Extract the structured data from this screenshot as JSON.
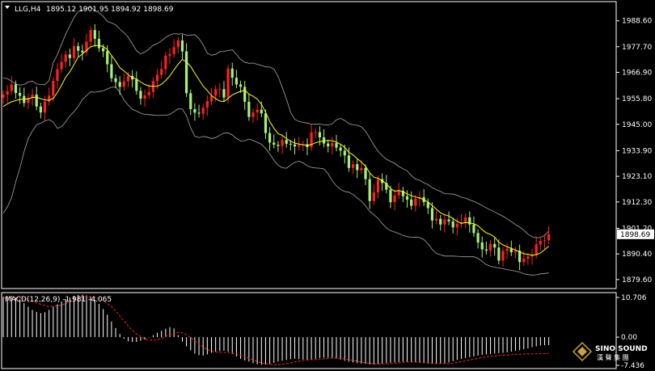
{
  "header": {
    "symbol_label": "LLG,H4",
    "ohlc_label": "1895.12 1901.95 1894.92 1898.69"
  },
  "macd_label": "MACD(12,26,9) -1.981 -4.065",
  "logo": {
    "name": "SINO SOUND",
    "cn": "漢 聲 集 團"
  },
  "colors": {
    "background": "#000000",
    "bull": "#ff2020",
    "bear": "#a6f07a",
    "ma": "#ffff00",
    "bands": "#a8a8a8",
    "macd_hist": "#ffffff",
    "macd_signal": "#ff2020",
    "grid": "#ffffff"
  },
  "chart_data": [
    {
      "type": "candlestick",
      "title": "LLG,H4",
      "ylim": [
        1876.5,
        1996.0
      ],
      "y_ticks": [
        1988.6,
        1977.7,
        1966.9,
        1955.8,
        1945.0,
        1933.9,
        1923.1,
        1912.3,
        1901.2,
        1890.4,
        1879.6
      ],
      "y_tick_labels": [
        "1988.60",
        "1977.70",
        "1966.90",
        "1955.80",
        "1945.00",
        "1933.90",
        "1923.10",
        "1912.30",
        "1901.20",
        "1890.40",
        "1879.60"
      ],
      "current_price": 1898.69,
      "current_price_label": "1898.69",
      "close": [
        1957.5,
        1959.0,
        1961.8,
        1958.2,
        1957.0,
        1954.0,
        1956.2,
        1957.5,
        1952.5,
        1950.0,
        1954.6,
        1957.1,
        1963.3,
        1968.2,
        1971.3,
        1974.4,
        1972.9,
        1977.9,
        1976.0,
        1975.3,
        1979.8,
        1984.7,
        1981.0,
        1977.1,
        1975.8,
        1970.3,
        1964.4,
        1962.8,
        1960.8,
        1963.1,
        1965.4,
        1963.9,
        1959.1,
        1955.8,
        1957.2,
        1958.6,
        1963.2,
        1965.8,
        1968.3,
        1973.9,
        1974.6,
        1977.5,
        1980.3,
        1975.7,
        1958.1,
        1951.4,
        1949.9,
        1949.5,
        1952.0,
        1954.7,
        1957.0,
        1959.8,
        1959.8,
        1956.3,
        1968.5,
        1964.6,
        1961.8,
        1960.8,
        1954.5,
        1948.1,
        1950.0,
        1951.2,
        1949.6,
        1941.3,
        1937.3,
        1936.4,
        1935.9,
        1938.4,
        1936.8,
        1936.5,
        1935.7,
        1936.2,
        1936.6,
        1935.4,
        1941.6,
        1941.7,
        1939.5,
        1936.9,
        1935.7,
        1937.1,
        1935.2,
        1933.9,
        1931.9,
        1926.6,
        1928.2,
        1925.7,
        1926.6,
        1921.9,
        1912.7,
        1916.3,
        1921.9,
        1920.3,
        1917.5,
        1912.2,
        1915.1,
        1917.0,
        1914.7,
        1913.3,
        1910.7,
        1913.7,
        1914.3,
        1912.2,
        1909.7,
        1904.5,
        1905.2,
        1902.8,
        1904.9,
        1904.1,
        1901.6,
        1903.1,
        1903.8,
        1905.8,
        1902.8,
        1899.2,
        1895.2,
        1892.3,
        1891.8,
        1894.6,
        1893.1,
        1887.6,
        1891.7,
        1892.6,
        1891.1,
        1891.8,
        1887.0,
        1888.4,
        1889.3,
        1890.0,
        1894.4,
        1895.9,
        1896.2,
        1898.7
      ],
      "ma": [
        1952.5,
        1953.6,
        1954.5,
        1955.0,
        1955.5,
        1955.6,
        1955.7,
        1956.3,
        1956.4,
        1955.8,
        1955.3,
        1955.1,
        1955.9,
        1958.4,
        1961.4,
        1964.9,
        1967.1,
        1970.2,
        1973.3,
        1974.6,
        1976.2,
        1977.7,
        1978.2,
        1978.2,
        1977.8,
        1976.5,
        1974.0,
        1971.6,
        1968.8,
        1967.5,
        1965.9,
        1964.6,
        1964.1,
        1962.8,
        1961.8,
        1961.1,
        1961.0,
        1961.0,
        1961.9,
        1963.5,
        1965.4,
        1967.9,
        1970.3,
        1972.3,
        1971.3,
        1969.4,
        1966.5,
        1963.8,
        1961.1,
        1959.2,
        1957.1,
        1955.9,
        1954.8,
        1954.6,
        1955.9,
        1957.4,
        1958.2,
        1958.9,
        1959.4,
        1957.7,
        1956.8,
        1955.6,
        1953.4,
        1950.1,
        1946.2,
        1943.3,
        1941.1,
        1940.3,
        1939.0,
        1937.9,
        1937.1,
        1936.7,
        1936.4,
        1936.1,
        1936.5,
        1937.2,
        1937.7,
        1938.0,
        1938.2,
        1938.1,
        1937.5,
        1936.6,
        1935.3,
        1933.2,
        1932.1,
        1930.5,
        1929.1,
        1927.3,
        1924.6,
        1922.7,
        1922.3,
        1921.2,
        1919.9,
        1918.0,
        1916.8,
        1917.1,
        1916.6,
        1915.7,
        1914.9,
        1914.4,
        1914.0,
        1913.2,
        1912.3,
        1910.8,
        1909.3,
        1907.7,
        1906.9,
        1906.4,
        1905.3,
        1904.1,
        1903.3,
        1903.6,
        1903.5,
        1903.1,
        1902.3,
        1900.6,
        1899.3,
        1898.6,
        1897.5,
        1895.3,
        1894.2,
        1893.4,
        1892.7,
        1892.1,
        1891.2,
        1890.5,
        1890.2,
        1889.9,
        1890.1,
        1890.8,
        1892.2,
        1893.7
      ],
      "bollinger_upper": [
        1964.5,
        1964.2,
        1963.2,
        1962.0,
        1961.5,
        1961.8,
        1962.8,
        1963.2,
        1962.0,
        1961.8,
        1961.7,
        1963.4,
        1971.0,
        1974.3,
        1978.7,
        1983.0,
        1986.5,
        1990.0,
        1992.5,
        1993.1,
        1993.9,
        1994.4,
        1992.9,
        1992.0,
        1990.5,
        1988.3,
        1987.7,
        1986.9,
        1985.1,
        1983.6,
        1981.7,
        1978.8,
        1976.0,
        1974.7,
        1975.4,
        1976.8,
        1978.3,
        1979.0,
        1980.2,
        1981.6,
        1982.6,
        1983.2,
        1983.0,
        1983.2,
        1982.5,
        1982.5,
        1982.8,
        1981.1,
        1978.5,
        1975.0,
        1974.1,
        1974.5,
        1975.6,
        1975.7,
        1976.1,
        1976.4,
        1974.5,
        1972.3,
        1971.1,
        1970.7,
        1970.8,
        1970.3,
        1969.8,
        1969.2,
        1969.1,
        1968.3,
        1965.2,
        1960.5,
        1955.7,
        1950.0,
        1947.1,
        1946.2,
        1945.8,
        1945.5,
        1945.1,
        1945.0,
        1945.1,
        1944.8,
        1944.7,
        1945.2,
        1946.9,
        1947.5,
        1946.6,
        1945.3,
        1944.8,
        1944.6,
        1943.9,
        1942.1,
        1939.2,
        1936.2,
        1933.7,
        1931.8,
        1930.3,
        1929.4,
        1928.6,
        1927.2,
        1926.3,
        1925.4,
        1923.4,
        1921.9,
        1921.4,
        1920.4,
        1919.6,
        1918.3,
        1917.5,
        1916.7,
        1915.8,
        1915.7,
        1915.6,
        1915.1,
        1914.3,
        1913.9,
        1913.2,
        1912.5,
        1911.7,
        1910.8,
        1909.8,
        1908.9,
        1908.1,
        1907.1,
        1906.3,
        1905.2,
        1904.0,
        1902.8,
        1901.7,
        1900.4,
        1898.7,
        1897.7,
        1897.2,
        1897.4,
        1898.2,
        1900.1
      ],
      "bollinger_lower": [
        1907.6,
        1910.2,
        1914.1,
        1920.8,
        1926.6,
        1933.5,
        1939.0,
        1942.2,
        1944.8,
        1945.5,
        1946.4,
        1947.0,
        1946.0,
        1943.3,
        1944.0,
        1946.1,
        1948.6,
        1950.3,
        1952.5,
        1955.5,
        1957.1,
        1958.7,
        1958.5,
        1958.8,
        1959.1,
        1959.9,
        1960.6,
        1960.7,
        1958.5,
        1955.2,
        1953.1,
        1951.3,
        1950.6,
        1949.7,
        1949.2,
        1949.1,
        1948.9,
        1948.7,
        1948.8,
        1948.8,
        1949.2,
        1950.3,
        1951.5,
        1951.4,
        1948.7,
        1943.5,
        1940.0,
        1939.4,
        1939.9,
        1939.6,
        1939.0,
        1939.4,
        1940.4,
        1941.3,
        1941.4,
        1940.5,
        1939.0,
        1938.0,
        1938.1,
        1938.8,
        1938.2,
        1937.4,
        1936.6,
        1934.8,
        1932.5,
        1929.9,
        1927.8,
        1926.7,
        1926.5,
        1927.8,
        1929.0,
        1929.5,
        1928.8,
        1927.5,
        1926.9,
        1926.6,
        1926.5,
        1926.2,
        1924.2,
        1921.2,
        1919.1,
        1917.6,
        1916.7,
        1916.4,
        1915.4,
        1914.0,
        1912.6,
        1910.6,
        1908.3,
        1906.9,
        1905.4,
        1903.2,
        1901.4,
        1900.2,
        1899.6,
        1899.0,
        1898.2,
        1897.7,
        1897.4,
        1897.5,
        1897.3,
        1896.4,
        1894.7,
        1892.3,
        1890.6,
        1890.0,
        1889.5,
        1889.5,
        1889.5,
        1889.4,
        1889.3,
        1889.2,
        1889.2,
        1889.2,
        1888.6,
        1887.2,
        1885.9,
        1885.2,
        1884.8,
        1884.5,
        1884.2,
        1883.8,
        1883.5,
        1883.1,
        1882.8,
        1882.0,
        1881.7,
        1881.5,
        1881.6,
        1882.0,
        1882.2,
        1882.4
      ]
    },
    {
      "type": "histogram",
      "title": "MACD(12,26,9) -1.981 -4.065",
      "ylim": [
        -7.436,
        10.706
      ],
      "y_ticks": [
        10.706,
        0.0,
        -7.436
      ],
      "y_tick_labels": [
        "10.706",
        "0.00",
        "-7.436"
      ],
      "macd": [
        10.1,
        10.2,
        10.3,
        10.0,
        9.4,
        8.5,
        7.6,
        6.8,
        6.3,
        6.0,
        6.2,
        6.8,
        7.6,
        8.2,
        8.9,
        9.5,
        9.9,
        10.3,
        10.5,
        10.6,
        10.4,
        10.1,
        9.3,
        8.3,
        7.0,
        5.6,
        3.9,
        2.3,
        0.8,
        -0.4,
        -1.0,
        -1.2,
        -1.2,
        -0.9,
        -0.6,
        -0.1,
        0.5,
        1.1,
        1.6,
        2.1,
        2.5,
        2.2,
        0.5,
        -1.1,
        -2.3,
        -3.3,
        -4.1,
        -4.5,
        -4.6,
        -4.3,
        -3.9,
        -3.6,
        -3.5,
        -3.4,
        -3.6,
        -4.2,
        -4.8,
        -5.4,
        -5.8,
        -6.1,
        -6.5,
        -6.8,
        -6.9,
        -6.8,
        -6.7,
        -6.4,
        -6.1,
        -5.9,
        -5.7,
        -5.5,
        -5.4,
        -5.5,
        -5.6,
        -5.7,
        -5.6,
        -5.4,
        -5.2,
        -5.1,
        -5.1,
        -5.2,
        -5.4,
        -5.6,
        -5.9,
        -6.1,
        -6.3,
        -6.5,
        -6.6,
        -6.7,
        -6.8,
        -6.8,
        -6.7,
        -6.6,
        -6.5,
        -6.4,
        -6.3,
        -6.2,
        -6.1,
        -6.1,
        -6.2,
        -6.3,
        -6.4,
        -6.5,
        -6.6,
        -6.7,
        -6.7,
        -6.6,
        -6.5,
        -6.3,
        -6.0,
        -5.7,
        -5.4,
        -5.2,
        -5.0,
        -4.8,
        -4.6,
        -4.4,
        -4.3,
        -4.2,
        -4.1,
        -4.0,
        -3.9,
        -3.8,
        -3.6,
        -3.4,
        -3.2,
        -3.0,
        -2.8,
        -2.5,
        -2.3,
        -2.1,
        -2.0,
        -1.981
      ],
      "signal": [
        9.7,
        9.8,
        9.9,
        9.9,
        9.8,
        9.5,
        9.2,
        8.9,
        8.5,
        8.2,
        7.9,
        7.6,
        7.7,
        7.8,
        8.0,
        8.4,
        8.8,
        9.3,
        9.7,
        10.0,
        10.1,
        10.1,
        9.9,
        9.6,
        9.1,
        8.4,
        7.6,
        6.5,
        5.3,
        4.0,
        2.8,
        1.7,
        0.8,
        0.1,
        -0.4,
        -0.7,
        -0.8,
        -0.6,
        -0.3,
        0.2,
        0.6,
        0.9,
        1.2,
        1.1,
        0.6,
        -0.1,
        -0.9,
        -1.7,
        -2.5,
        -3.1,
        -3.5,
        -3.7,
        -3.8,
        -3.8,
        -3.8,
        -3.9,
        -4.2,
        -4.5,
        -4.9,
        -5.3,
        -5.7,
        -6.1,
        -6.4,
        -6.6,
        -6.8,
        -6.9,
        -6.9,
        -6.8,
        -6.6,
        -6.4,
        -6.2,
        -6.0,
        -5.8,
        -5.7,
        -5.6,
        -5.6,
        -5.5,
        -5.4,
        -5.3,
        -5.2,
        -5.2,
        -5.3,
        -5.4,
        -5.6,
        -5.8,
        -6.0,
        -6.2,
        -6.4,
        -6.5,
        -6.7,
        -6.7,
        -6.7,
        -6.7,
        -6.6,
        -6.5,
        -6.4,
        -6.3,
        -6.2,
        -6.2,
        -6.2,
        -6.2,
        -6.3,
        -6.4,
        -6.5,
        -6.6,
        -6.6,
        -6.6,
        -6.6,
        -6.5,
        -6.3,
        -6.1,
        -5.9,
        -5.7,
        -5.5,
        -5.3,
        -5.1,
        -4.9,
        -4.8,
        -4.7,
        -4.6,
        -4.5,
        -4.5,
        -4.4,
        -4.3,
        -4.3,
        -4.2,
        -4.2,
        -4.2,
        -4.1,
        -4.1,
        -4.1,
        -4.065
      ]
    }
  ]
}
